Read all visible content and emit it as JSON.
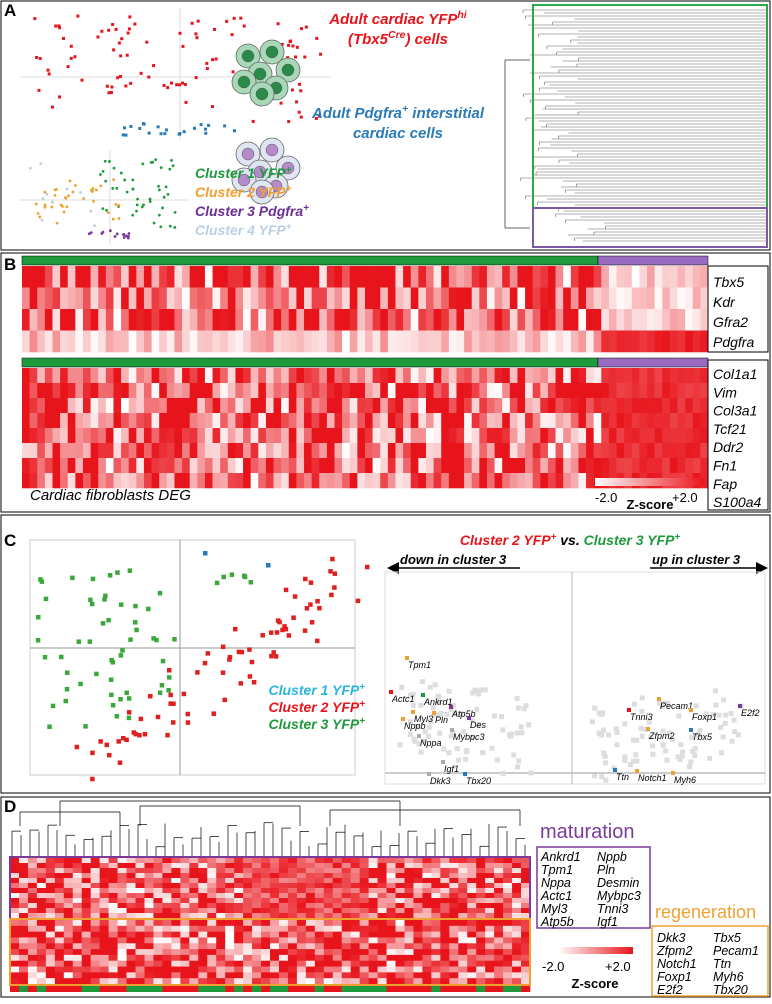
{
  "panel_labels": [
    "A",
    "B",
    "C",
    "D"
  ],
  "panel_a": {
    "cardiac_label": [
      [
        "Adult cardiac YFP",
        {
          "sup": "hi"
        }
      ],
      [
        "(Tbx5",
        {
          "sup": "Cre"
        },
        ") cells"
      ]
    ],
    "interstitial_label": [
      [
        "Adult Pdgfra",
        {
          "sup": "+"
        },
        " interstitial"
      ],
      [
        "cardiac cells"
      ]
    ],
    "clusters": [
      {
        "text": [
          "Cluster 1 YFP",
          {
            "sup": "+"
          }
        ],
        "color": "#1e9a3c"
      },
      {
        "text": [
          "Cluster 2 YFP",
          {
            "sup": "+"
          }
        ],
        "color": "#f0a030"
      },
      {
        "text": [
          "Cluster 3 Pdgfra",
          {
            "sup": "+"
          }
        ],
        "color": "#6a2f94"
      },
      {
        "text": [
          "Cluster 4 YFP",
          {
            "sup": "+"
          }
        ],
        "color": "#b9cfe6"
      }
    ]
  },
  "panel_b": {
    "genes_top": [
      "Tbx5",
      "Kdr",
      "Gfra2",
      "Pdgfra"
    ],
    "genes_bottom": [
      "Col1a1",
      "Vim",
      "Col3a1",
      "Tcf21",
      "Ddr2",
      "Fn1",
      "Fap",
      "S100a4"
    ],
    "caption": "Cardiac fibroblasts DEG",
    "scale_min": "-2.0",
    "scale_max": "+2.0",
    "scale_title": "Z-score"
  },
  "panel_c": {
    "clusters": [
      {
        "text": [
          "Cluster 1 YFP",
          {
            "sup": "+"
          }
        ],
        "color": "#29b6d8"
      },
      {
        "text": [
          "Cluster 2 YFP",
          {
            "sup": "+"
          }
        ],
        "color": "#e8141b"
      },
      {
        "text": [
          "Cluster 3 YFP",
          {
            "sup": "+"
          }
        ],
        "color": "#1e9a3c"
      }
    ],
    "comparison_title": [
      {
        "text": [
          "Cluster 2 YFP",
          {
            "sup": "+"
          }
        ],
        "color": "#e8141b"
      },
      {
        "text": [
          " vs. "
        ],
        "color": "#000000"
      },
      {
        "text": [
          "Cluster 3 YFP",
          {
            "sup": "+"
          }
        ],
        "color": "#1e9a3c"
      }
    ],
    "down_label": "down in cluster 3",
    "up_label": "up in cluster 3",
    "volcano_genes": [
      "Tpm1",
      "Actc1",
      "Ankrd1",
      "Myl3",
      "Pln",
      "Atp5b",
      "Des",
      "Nppb",
      "Mybpc3",
      "Nppa",
      "Igf1",
      "Dkk3",
      "Tbx20",
      "Pecam1",
      "Tnni3",
      "Foxp1",
      "E2f2",
      "Zfpm2",
      "Tbx5",
      "Ttn",
      "Notch1",
      "Myh6"
    ]
  },
  "panel_d": {
    "maturation_title": "maturation",
    "maturation_genes": [
      [
        "Ankrd1",
        "Tpm1",
        "Nppa",
        "Actc1",
        "Myl3",
        "Atp5b"
      ],
      [
        "Nppb",
        "Pln",
        "Desmin",
        "Mybpc3",
        "Tnni3",
        "Igf1"
      ]
    ],
    "regeneration_title": "regeneration",
    "regeneration_genes": [
      [
        "Dkk3",
        "Zfpm2",
        "Notch1",
        "Foxp1",
        "E2f2"
      ],
      [
        "Tbx5",
        "Pecam1",
        "Ttn",
        "Myh6",
        "Tbx20"
      ]
    ],
    "scale_min": "-2.0",
    "scale_max": "+2.0",
    "scale_title": "Z-score"
  }
}
